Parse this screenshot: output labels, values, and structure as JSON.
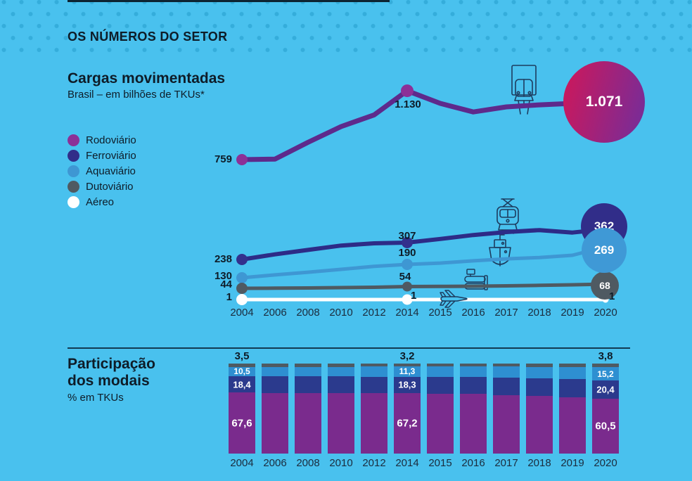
{
  "header": {
    "title": "OS NÚMEROS DO SETOR"
  },
  "legend": [
    {
      "label": "Rodoviário",
      "color": "#8c3097"
    },
    {
      "label": "Ferroviário",
      "color": "#312d89"
    },
    {
      "label": "Aquaviário",
      "color": "#3e97d3"
    },
    {
      "label": "Dutoviário",
      "color": "#4f5a62"
    },
    {
      "label": "Aéreo",
      "color": "#ffffff"
    }
  ],
  "icons": {
    "rodoviario": "truck-front-icon",
    "ferroviario": "locomotive-front-icon",
    "aquaviario": "ship-front-icon",
    "dutoviario": "pipeline-icon",
    "aereo": "airplane-icon"
  },
  "colors": {
    "background": "#49c1ee",
    "rodoviario_line": "#5e2a8c",
    "rodoviario_circle_gradient": [
      "#c8195e",
      "#7d2b94"
    ],
    "ferroviario": "#2d2b87",
    "aquaviario": "#3e97d3",
    "dutoviario": "#4f5a62",
    "aereo": "#ffffff",
    "bar_rodoviario": "#7a2b8d",
    "bar_ferroviario": "#2b3a8d",
    "bar_aquaviario": "#2e8fd1",
    "bar_dutoviario": "#4f5a62"
  },
  "chart_data": [
    {
      "type": "line",
      "title": "Cargas movimentadas",
      "subtitle": "Brasil – em bilhões de TKUs*",
      "x": [
        2004,
        2006,
        2008,
        2010,
        2012,
        2014,
        2015,
        2016,
        2017,
        2018,
        2019,
        2020
      ],
      "note_labeled_years": [
        2004,
        2014,
        2020
      ],
      "series": [
        {
          "name": "Rodoviário",
          "values": [
            759,
            762,
            852,
            937,
            1000,
            1130,
            1062,
            1016,
            1043,
            1054,
            1062,
            1071
          ],
          "labels": {
            "2004": "759",
            "2014": "1.130",
            "2020": "1.071"
          }
        },
        {
          "name": "Ferroviário",
          "values": [
            238,
            259,
            277,
            295,
            304,
            307,
            322,
            338,
            350,
            358,
            348,
            362
          ],
          "labels": {
            "2004": "238",
            "2014": "307",
            "2020": "362"
          }
        },
        {
          "name": "Aquaviário",
          "values": [
            130,
            143,
            155,
            168,
            181,
            190,
            196,
            206,
            215,
            221,
            231,
            269
          ],
          "labels": {
            "2004": "130",
            "2014": "190",
            "2020": "269"
          }
        },
        {
          "name": "Dutoviário",
          "values": [
            44,
            45,
            46,
            48,
            50,
            54,
            55,
            56,
            58,
            61,
            64,
            68
          ],
          "labels": {
            "2004": "44",
            "2014": "54",
            "2020": "68"
          }
        },
        {
          "name": "Aéreo",
          "values": [
            1,
            1,
            1,
            1,
            1,
            1,
            1,
            1,
            1,
            1,
            1,
            1
          ],
          "labels": {
            "2004": "1",
            "2014": "1",
            "2020": "1"
          }
        }
      ]
    },
    {
      "type": "stacked_bar",
      "title": "Participação dos modais",
      "title_lines": [
        "Participação",
        "dos modais"
      ],
      "unit": "% em TKUs",
      "categories": [
        2004,
        2006,
        2008,
        2010,
        2012,
        2014,
        2015,
        2016,
        2017,
        2018,
        2019,
        2020
      ],
      "series": [
        {
          "name": "Rodoviário",
          "values": [
            67.6,
            67.4,
            67.2,
            67.1,
            67.1,
            67.2,
            66.6,
            66.2,
            64.8,
            64.0,
            62.5,
            60.5
          ]
        },
        {
          "name": "Ferroviário",
          "values": [
            18.4,
            18.5,
            18.5,
            18.5,
            18.4,
            18.3,
            18.6,
            18.8,
            19.5,
            19.9,
            20.2,
            20.4
          ]
        },
        {
          "name": "Aquaviário",
          "values": [
            10.5,
            10.6,
            10.8,
            10.9,
            11.1,
            11.3,
            11.5,
            11.6,
            12.3,
            12.6,
            13.6,
            15.2
          ]
        },
        {
          "name": "Dutoviário",
          "values": [
            3.5,
            3.5,
            3.5,
            3.5,
            3.4,
            3.2,
            3.3,
            3.4,
            3.4,
            3.5,
            3.7,
            3.8
          ]
        }
      ],
      "labeled_years": [
        2004,
        2014,
        2020
      ],
      "labels": {
        "2004": {
          "Dutoviário": "3,5",
          "Aquaviário": "10,5",
          "Ferroviário": "18,4",
          "Rodoviário": "67,6"
        },
        "2014": {
          "Dutoviário": "3,2",
          "Aquaviário": "11,3",
          "Ferroviário": "18,3",
          "Rodoviário": "67,2"
        },
        "2020": {
          "Dutoviário": "3,8",
          "Aquaviário": "15,2",
          "Ferroviário": "20,4",
          "Rodoviário": "60,5"
        }
      }
    }
  ]
}
